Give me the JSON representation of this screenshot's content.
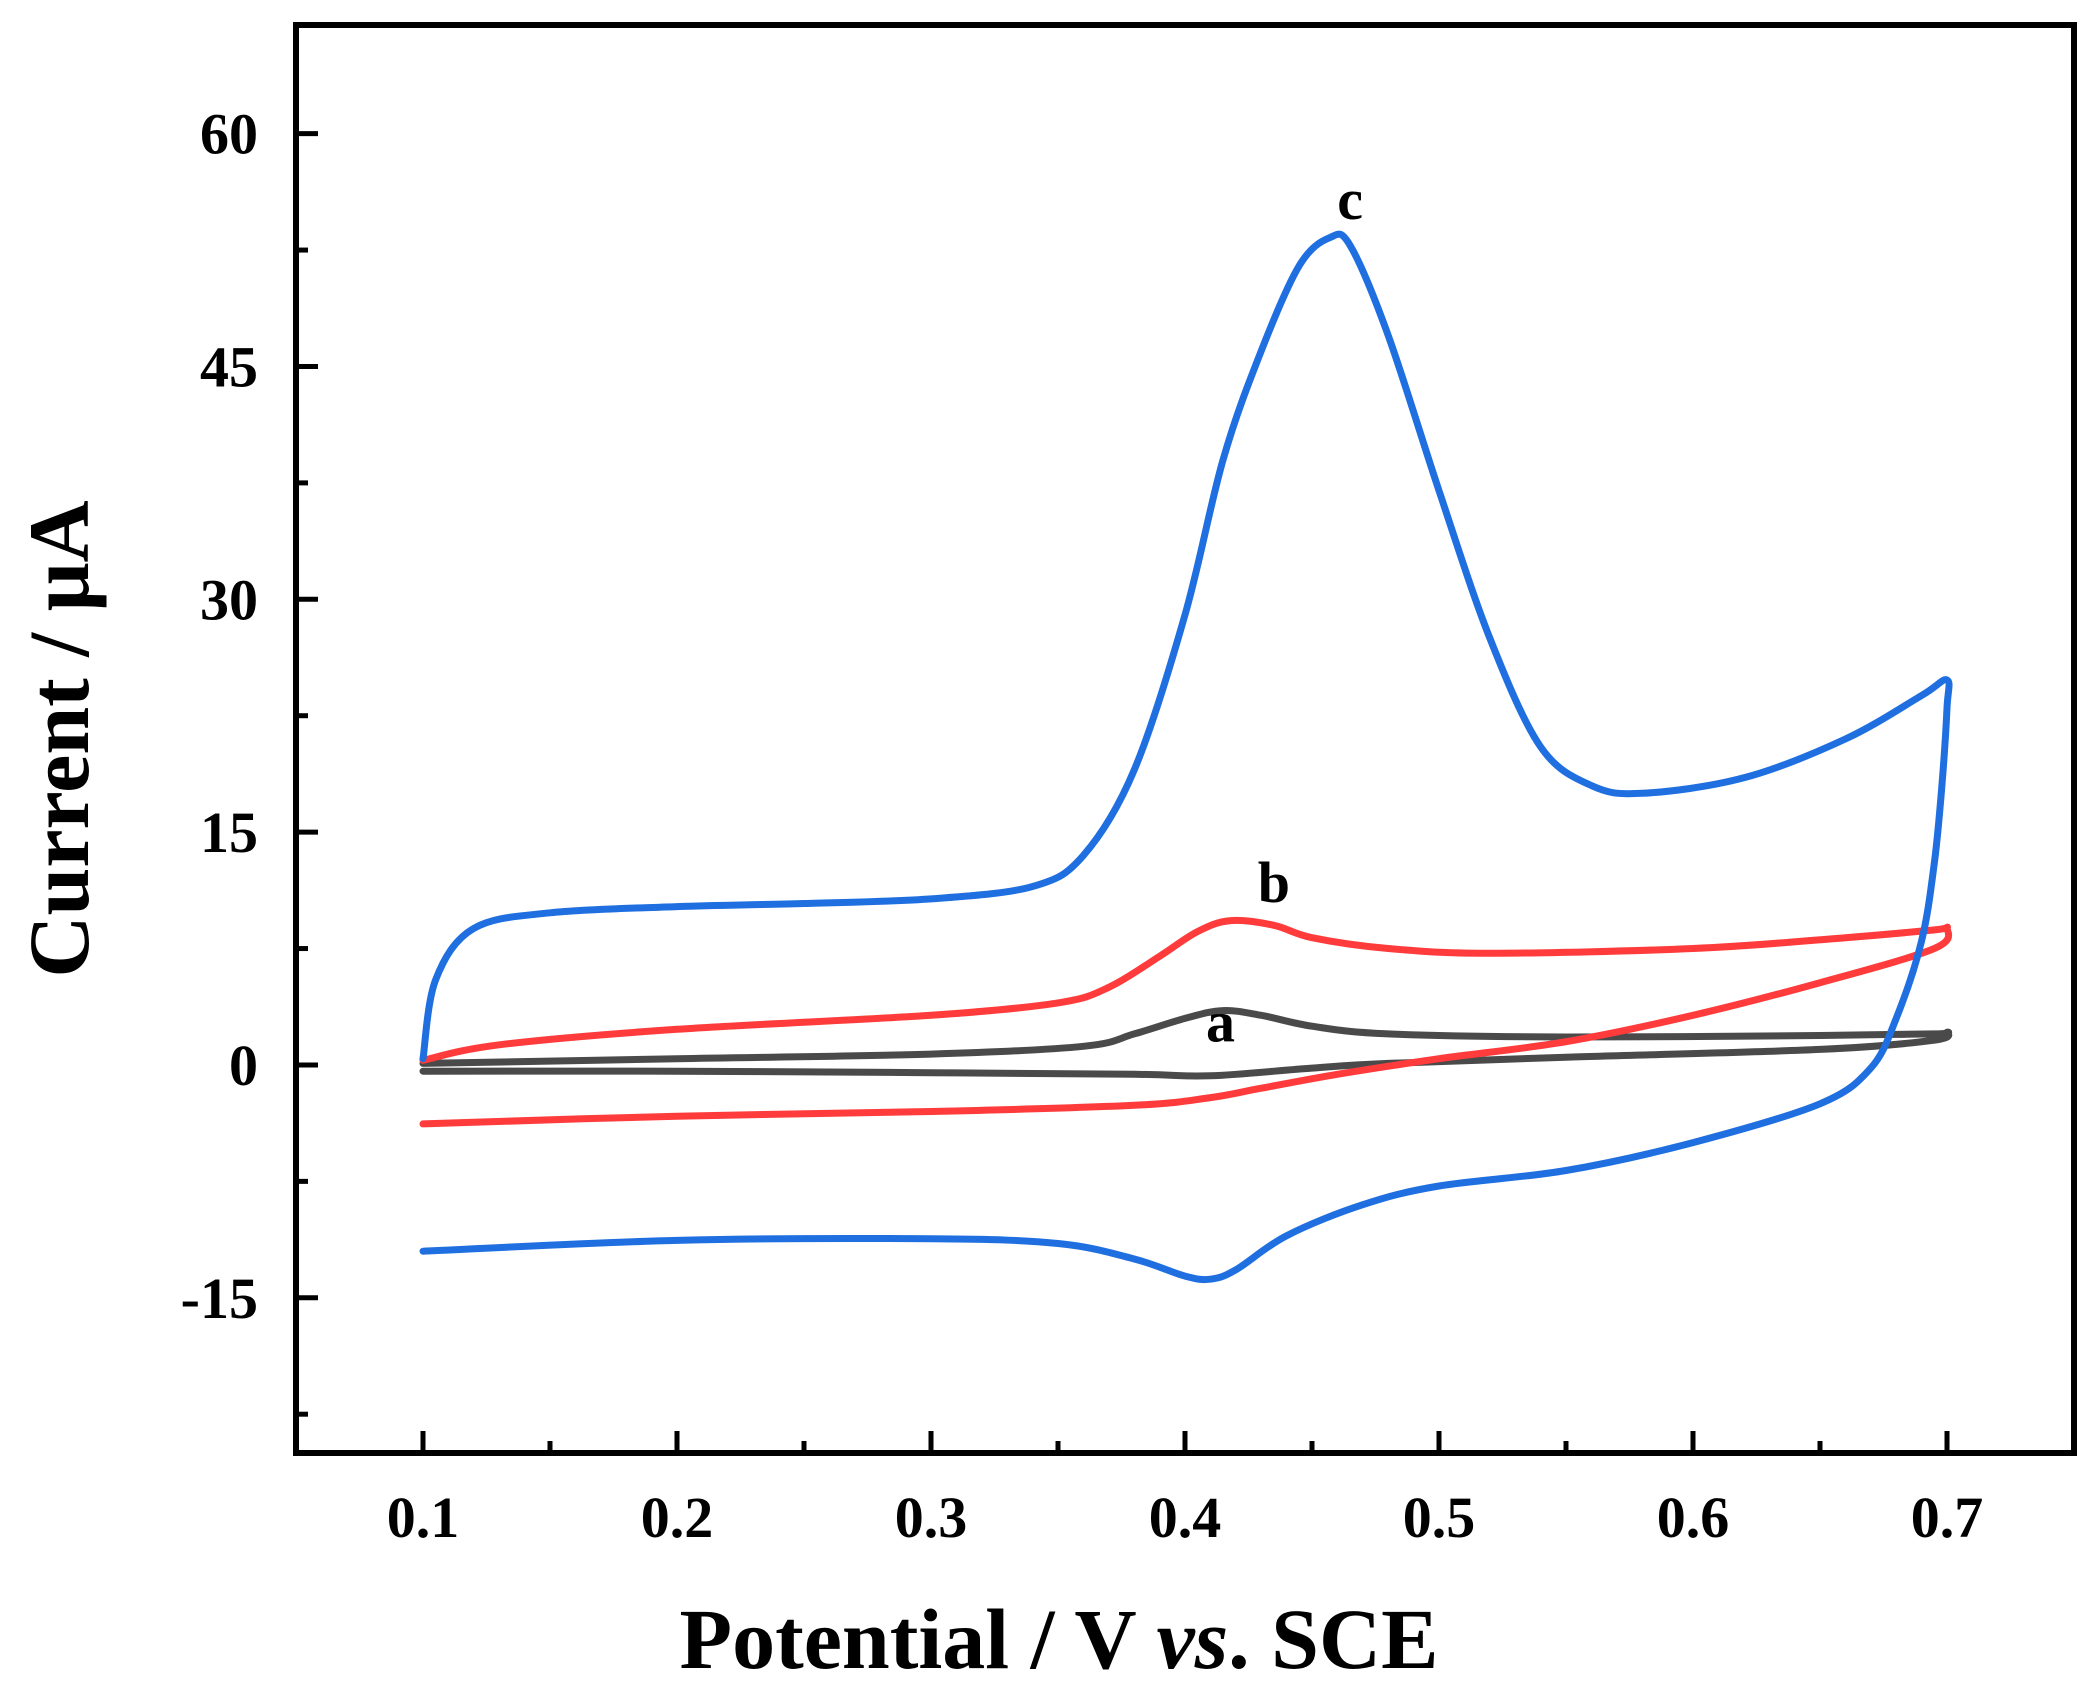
{
  "chart_data": {
    "type": "line",
    "title": "",
    "xlabel_parts": [
      "Potential / V ",
      "vs",
      ". SCE"
    ],
    "ylabel": "Current / μA",
    "xlim": [
      0.05,
      0.75
    ],
    "ylim": [
      -25,
      67
    ],
    "xticks": [
      {
        "value": 0.1,
        "label": "0.1"
      },
      {
        "value": 0.2,
        "label": "0.2"
      },
      {
        "value": 0.3,
        "label": "0.3"
      },
      {
        "value": 0.4,
        "label": "0.4"
      },
      {
        "value": 0.5,
        "label": "0.5"
      },
      {
        "value": 0.6,
        "label": "0.6"
      },
      {
        "value": 0.7,
        "label": "0.7"
      }
    ],
    "xminor": [
      0.15,
      0.25,
      0.35,
      0.45,
      0.55,
      0.65
    ],
    "yticks": [
      {
        "value": -15,
        "label": "-15"
      },
      {
        "value": 0,
        "label": "0"
      },
      {
        "value": 15,
        "label": "15"
      },
      {
        "value": 30,
        "label": "30"
      },
      {
        "value": 45,
        "label": "45"
      },
      {
        "value": 60,
        "label": "60"
      }
    ],
    "yminor": [
      -22.5,
      -7.5,
      7.5,
      22.5,
      37.5,
      52.5
    ],
    "grid": false,
    "series": [
      {
        "name": "a",
        "color": "#4a4a4a",
        "label_at": [
          0.414,
          1.5
        ],
        "points": [
          [
            0.1,
            0.1
          ],
          [
            0.2,
            0.4
          ],
          [
            0.3,
            0.7
          ],
          [
            0.36,
            1.2
          ],
          [
            0.38,
            2.0
          ],
          [
            0.4,
            3.0
          ],
          [
            0.415,
            3.5
          ],
          [
            0.43,
            3.2
          ],
          [
            0.45,
            2.5
          ],
          [
            0.48,
            2.0
          ],
          [
            0.55,
            1.8
          ],
          [
            0.65,
            1.9
          ],
          [
            0.695,
            2.0
          ],
          [
            0.7,
            2.1
          ],
          [
            0.695,
            1.6
          ],
          [
            0.65,
            1.0
          ],
          [
            0.55,
            0.5
          ],
          [
            0.48,
            0.1
          ],
          [
            0.45,
            -0.2
          ],
          [
            0.41,
            -0.7
          ],
          [
            0.38,
            -0.6
          ],
          [
            0.3,
            -0.5
          ],
          [
            0.2,
            -0.4
          ],
          [
            0.1,
            -0.4
          ]
        ]
      },
      {
        "name": "b",
        "color": "#ff3b3b",
        "label_at": [
          0.435,
          10.5
        ],
        "points": [
          [
            0.1,
            0.3
          ],
          [
            0.13,
            1.3
          ],
          [
            0.2,
            2.3
          ],
          [
            0.3,
            3.2
          ],
          [
            0.35,
            4.0
          ],
          [
            0.37,
            5.0
          ],
          [
            0.39,
            7.0
          ],
          [
            0.405,
            8.6
          ],
          [
            0.418,
            9.3
          ],
          [
            0.435,
            9.0
          ],
          [
            0.45,
            8.2
          ],
          [
            0.48,
            7.5
          ],
          [
            0.52,
            7.2
          ],
          [
            0.6,
            7.5
          ],
          [
            0.66,
            8.2
          ],
          [
            0.695,
            8.7
          ],
          [
            0.7,
            8.8
          ],
          [
            0.695,
            7.5
          ],
          [
            0.65,
            5.3
          ],
          [
            0.6,
            3.2
          ],
          [
            0.55,
            1.5
          ],
          [
            0.5,
            0.4
          ],
          [
            0.46,
            -0.6
          ],
          [
            0.43,
            -1.5
          ],
          [
            0.41,
            -2.1
          ],
          [
            0.38,
            -2.6
          ],
          [
            0.3,
            -3.0
          ],
          [
            0.2,
            -3.3
          ],
          [
            0.1,
            -3.8
          ]
        ]
      },
      {
        "name": "c",
        "color": "#1f6fe0",
        "label_at": [
          0.465,
          54.5
        ],
        "points": [
          [
            0.1,
            0.4
          ],
          [
            0.105,
            5.5
          ],
          [
            0.12,
            8.8
          ],
          [
            0.15,
            9.8
          ],
          [
            0.2,
            10.2
          ],
          [
            0.25,
            10.4
          ],
          [
            0.3,
            10.7
          ],
          [
            0.34,
            11.5
          ],
          [
            0.36,
            13.5
          ],
          [
            0.38,
            19.0
          ],
          [
            0.4,
            29.0
          ],
          [
            0.415,
            39.0
          ],
          [
            0.43,
            46.0
          ],
          [
            0.445,
            51.5
          ],
          [
            0.457,
            53.3
          ],
          [
            0.465,
            52.8
          ],
          [
            0.48,
            47.0
          ],
          [
            0.5,
            37.0
          ],
          [
            0.52,
            27.5
          ],
          [
            0.54,
            20.5
          ],
          [
            0.56,
            18.0
          ],
          [
            0.58,
            17.5
          ],
          [
            0.62,
            18.5
          ],
          [
            0.66,
            21.0
          ],
          [
            0.69,
            23.8
          ],
          [
            0.7,
            24.8
          ],
          [
            0.7,
            23.0
          ],
          [
            0.698,
            18.0
          ],
          [
            0.695,
            13.0
          ],
          [
            0.69,
            8.0
          ],
          [
            0.68,
            3.0
          ],
          [
            0.67,
            -0.2
          ],
          [
            0.65,
            -2.5
          ],
          [
            0.6,
            -5.0
          ],
          [
            0.55,
            -6.8
          ],
          [
            0.5,
            -7.8
          ],
          [
            0.47,
            -9.0
          ],
          [
            0.44,
            -11.0
          ],
          [
            0.42,
            -13.2
          ],
          [
            0.41,
            -13.8
          ],
          [
            0.4,
            -13.6
          ],
          [
            0.38,
            -12.5
          ],
          [
            0.35,
            -11.5
          ],
          [
            0.3,
            -11.2
          ],
          [
            0.2,
            -11.3
          ],
          [
            0.1,
            -12.0
          ]
        ]
      }
    ]
  }
}
